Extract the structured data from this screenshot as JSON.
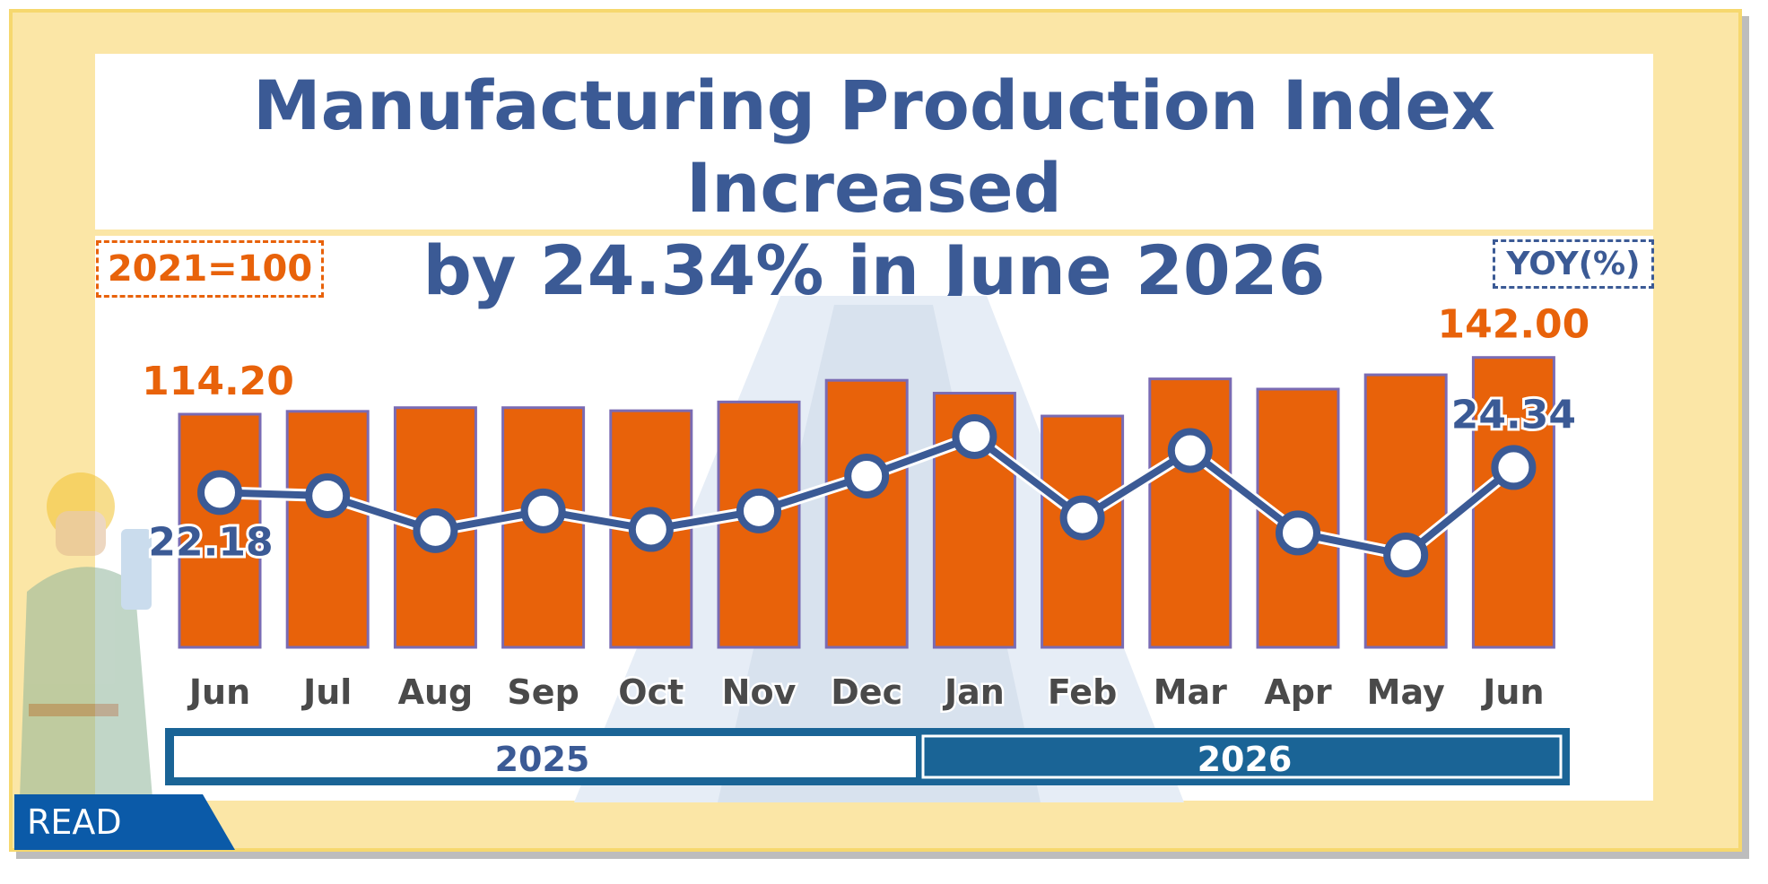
{
  "title": "Manufacturing Production Index Increased by 24.34% in June 2026",
  "base_label": "2021=100",
  "yoy_label": "YOY(%)",
  "badge": "READ",
  "years": [
    "2025",
    "2026"
  ],
  "colors": {
    "bar": "#e8620a",
    "bar_outline": "#7a6bb3",
    "line": "#3b5a95",
    "year_band": "#1a6496"
  },
  "chart_data": {
    "type": "bar+line",
    "categories": [
      "Jun",
      "Jul",
      "Aug",
      "Sep",
      "Oct",
      "Nov",
      "Dec",
      "Jan",
      "Feb",
      "Mar",
      "Apr",
      "May",
      "Jun"
    ],
    "series": [
      {
        "name": "2021=100",
        "type": "bar",
        "values": [
          114.2,
          115.6,
          117.4,
          117.4,
          115.9,
          120.2,
          130.8,
          124.5,
          113.3,
          131.5,
          126.5,
          133.5,
          142.0
        ],
        "labels": {
          "0": "114.20",
          "12": "142.00"
        }
      },
      {
        "name": "YOY(%)",
        "type": "line",
        "values": [
          22.18,
          21.9,
          18.9,
          20.6,
          19.0,
          20.6,
          23.6,
          27.0,
          20.0,
          25.8,
          18.7,
          16.8,
          24.34
        ],
        "labels": {
          "0": "22.18",
          "12": "24.34"
        }
      }
    ]
  }
}
